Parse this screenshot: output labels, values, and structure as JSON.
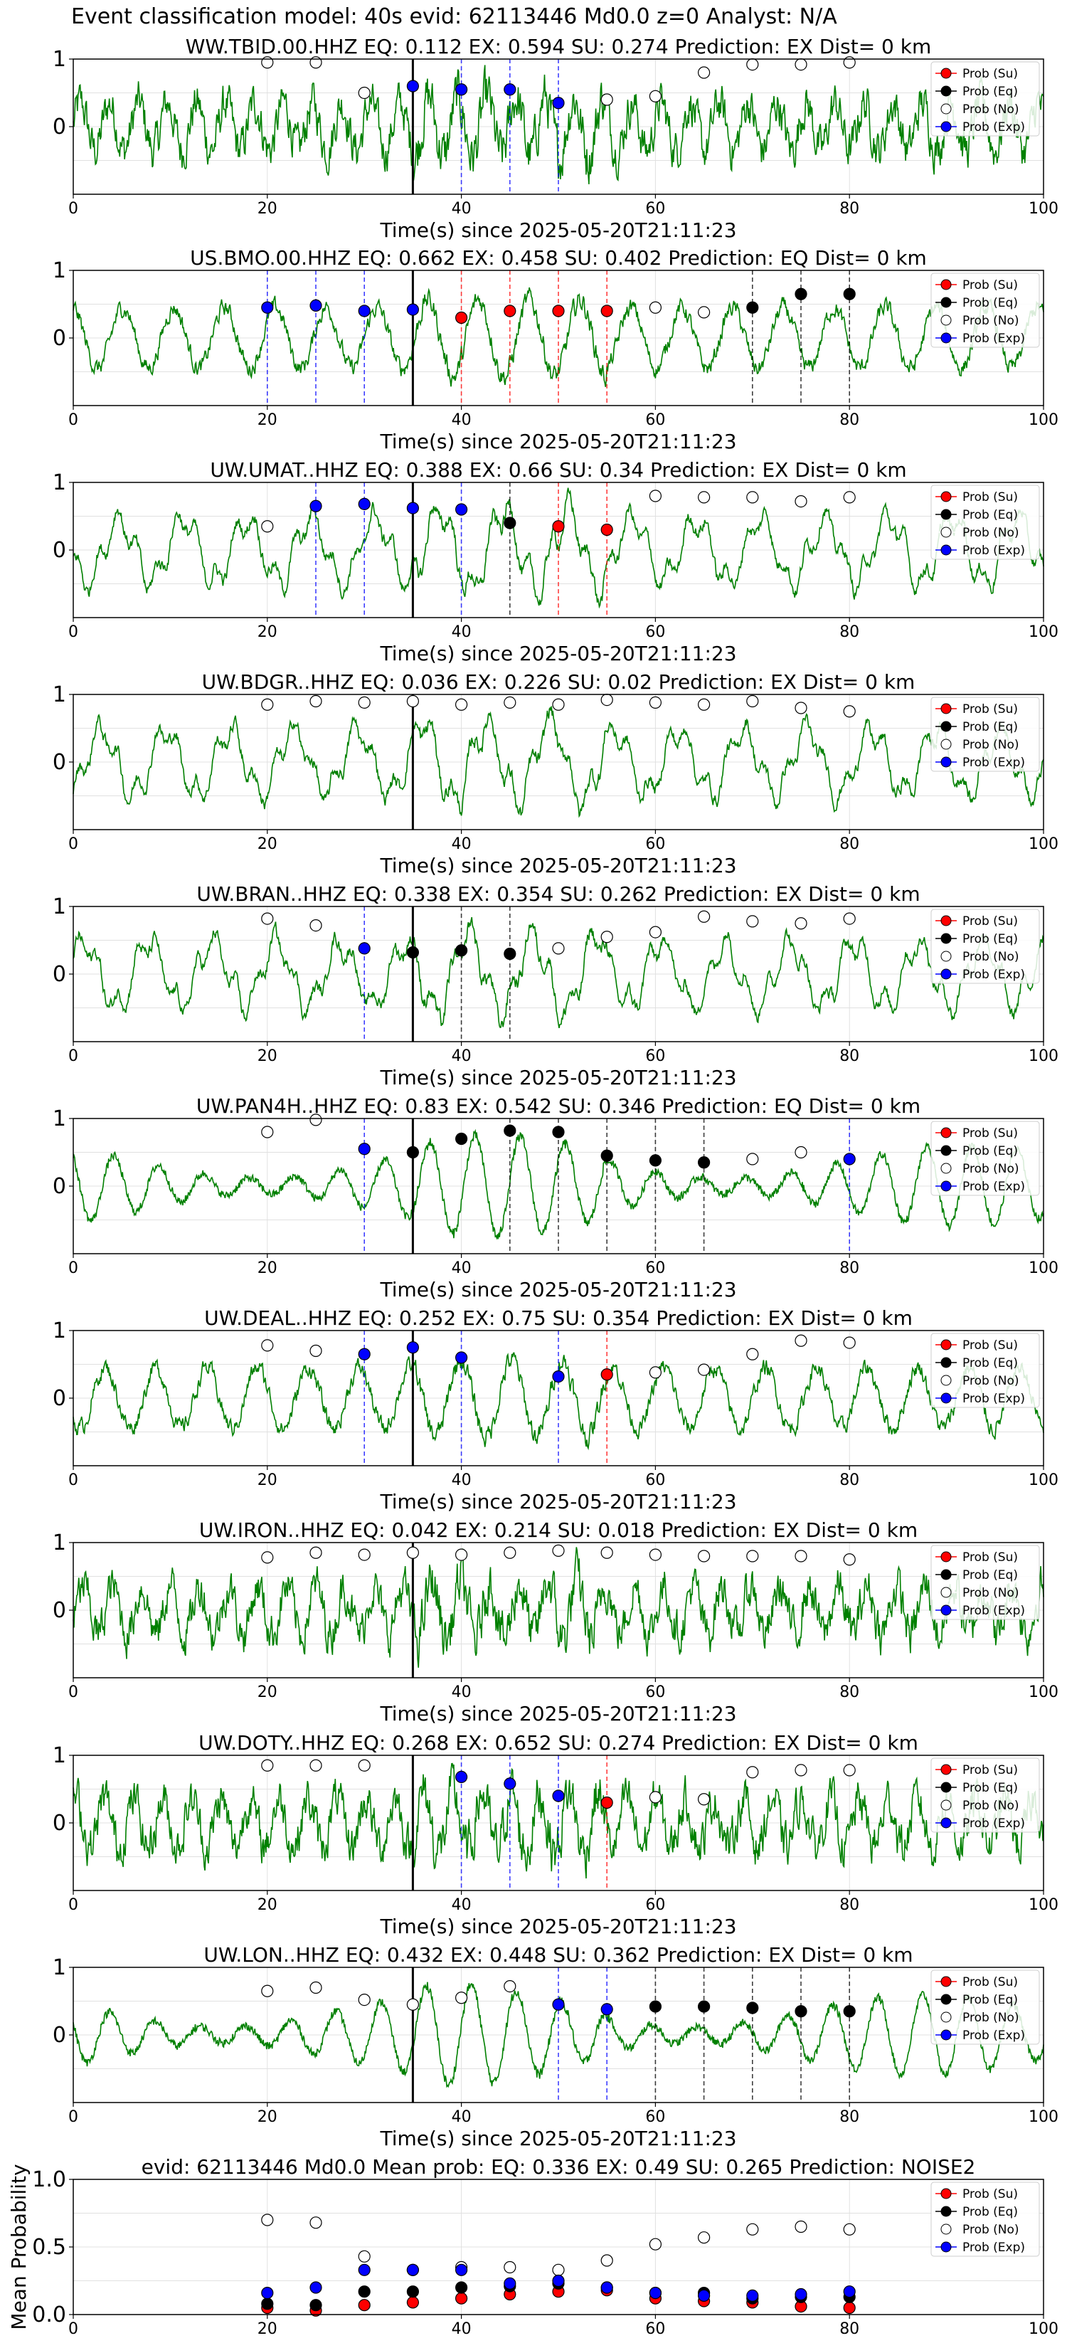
{
  "figure_title": "Event classification model: 40s evid: 62113446 Md0.0 z=0 Analyst: N/A",
  "legend_labels": [
    "Prob (Su)",
    "Prob (Eq)",
    "Prob (No)",
    "Prob (Exp)"
  ],
  "colors": {
    "trace": "#008000",
    "su": "#ff0000",
    "eq": "#000000",
    "no": "#ffffff",
    "exp": "#0000ff",
    "onset_line": "#000000",
    "grid": "#e0e0e0"
  },
  "chart_data": [
    {
      "type": "line",
      "station": "WW.TBID.00.HHZ",
      "title": "WW.TBID.00.HHZ   EQ: 0.112  EX: 0.594  SU: 0.274   Prediction: EX    Dist= 0 km",
      "xlabel": "Time(s) since 2025-05-20T21:11:23",
      "xlim": [
        0,
        100
      ],
      "xticks": [
        0,
        20,
        40,
        60,
        80,
        100
      ],
      "yticks": [
        0,
        1
      ],
      "ylim": [
        -1,
        1
      ],
      "onset": 35,
      "style": "hf",
      "no": [
        [
          20,
          0.95
        ],
        [
          25,
          0.95
        ],
        [
          30,
          0.5
        ],
        [
          55,
          0.4
        ],
        [
          60,
          0.45
        ],
        [
          65,
          0.8
        ],
        [
          70,
          0.92
        ],
        [
          75,
          0.92
        ],
        [
          80,
          0.95
        ]
      ],
      "eq": [],
      "su": [],
      "exp": [
        [
          35,
          0.6
        ],
        [
          40,
          0.55
        ],
        [
          45,
          0.55
        ],
        [
          50,
          0.35
        ]
      ],
      "vlines": [
        [
          40,
          "exp"
        ],
        [
          45,
          "exp"
        ],
        [
          50,
          "exp"
        ]
      ]
    },
    {
      "type": "line",
      "station": "US.BMO.00.HHZ",
      "title": "US.BMO.00.HHZ   EQ: 0.662  EX: 0.458  SU: 0.402   Prediction: EQ    Dist= 0 km",
      "xlabel": "Time(s) since 2025-05-20T21:11:23",
      "xlim": [
        0,
        100
      ],
      "xticks": [
        0,
        20,
        40,
        60,
        80,
        100
      ],
      "yticks": [
        0,
        1
      ],
      "ylim": [
        -1,
        1
      ],
      "onset": 35,
      "style": "mix",
      "no": [
        [
          60,
          0.45
        ],
        [
          65,
          0.38
        ]
      ],
      "eq": [
        [
          70,
          0.45
        ],
        [
          75,
          0.65
        ],
        [
          80,
          0.65
        ]
      ],
      "su": [
        [
          40,
          0.3
        ],
        [
          45,
          0.4
        ],
        [
          50,
          0.4
        ],
        [
          55,
          0.4
        ]
      ],
      "exp": [
        [
          20,
          0.45
        ],
        [
          25,
          0.48
        ],
        [
          30,
          0.4
        ],
        [
          35,
          0.42
        ]
      ],
      "vlines": [
        [
          20,
          "exp"
        ],
        [
          25,
          "exp"
        ],
        [
          30,
          "exp"
        ],
        [
          40,
          "su"
        ],
        [
          45,
          "su"
        ],
        [
          50,
          "su"
        ],
        [
          55,
          "su"
        ],
        [
          70,
          "eq"
        ],
        [
          75,
          "eq"
        ],
        [
          80,
          "eq"
        ]
      ]
    },
    {
      "type": "line",
      "station": "UW.UMAT..HHZ",
      "title": "UW.UMAT..HHZ   EQ: 0.388  EX: 0.66  SU: 0.34   Prediction: EX    Dist= 0 km",
      "xlabel": "Time(s) since 2025-05-20T21:11:23",
      "xlim": [
        0,
        100
      ],
      "xticks": [
        0,
        20,
        40,
        60,
        80,
        100
      ],
      "yticks": [
        0,
        1
      ],
      "ylim": [
        -1,
        1
      ],
      "onset": 35,
      "style": "low",
      "no": [
        [
          20,
          0.35
        ],
        [
          60,
          0.8
        ],
        [
          65,
          0.78
        ],
        [
          70,
          0.78
        ],
        [
          75,
          0.72
        ],
        [
          80,
          0.78
        ]
      ],
      "eq": [
        [
          45,
          0.4
        ]
      ],
      "su": [
        [
          50,
          0.35
        ],
        [
          55,
          0.3
        ]
      ],
      "exp": [
        [
          25,
          0.65
        ],
        [
          30,
          0.68
        ],
        [
          35,
          0.62
        ],
        [
          40,
          0.6
        ]
      ],
      "vlines": [
        [
          25,
          "exp"
        ],
        [
          30,
          "exp"
        ],
        [
          40,
          "exp"
        ],
        [
          45,
          "eq"
        ],
        [
          50,
          "su"
        ],
        [
          55,
          "su"
        ]
      ]
    },
    {
      "type": "line",
      "station": "UW.BDGR..HHZ",
      "title": "UW.BDGR..HHZ   EQ: 0.036  EX: 0.226  SU: 0.02   Prediction: EX    Dist= 0 km",
      "xlabel": "Time(s) since 2025-05-20T21:11:23",
      "xlim": [
        0,
        100
      ],
      "xticks": [
        0,
        20,
        40,
        60,
        80,
        100
      ],
      "yticks": [
        0,
        1
      ],
      "ylim": [
        -1,
        1
      ],
      "onset": 35,
      "style": "low",
      "no": [
        [
          20,
          0.85
        ],
        [
          25,
          0.9
        ],
        [
          30,
          0.88
        ],
        [
          35,
          0.9
        ],
        [
          40,
          0.85
        ],
        [
          45,
          0.88
        ],
        [
          50,
          0.85
        ],
        [
          55,
          0.92
        ],
        [
          60,
          0.88
        ],
        [
          65,
          0.85
        ],
        [
          70,
          0.9
        ],
        [
          75,
          0.8
        ],
        [
          80,
          0.75
        ]
      ],
      "eq": [],
      "su": [],
      "exp": [],
      "vlines": []
    },
    {
      "type": "line",
      "station": "UW.BRAN..HHZ",
      "title": "UW.BRAN..HHZ   EQ: 0.338  EX: 0.354  SU: 0.262   Prediction: EX    Dist= 0 km",
      "xlabel": "Time(s) since 2025-05-20T21:11:23",
      "xlim": [
        0,
        100
      ],
      "xticks": [
        0,
        20,
        40,
        60,
        80,
        100
      ],
      "yticks": [
        0,
        1
      ],
      "ylim": [
        -1,
        1
      ],
      "onset": 35,
      "style": "low",
      "no": [
        [
          20,
          0.82
        ],
        [
          25,
          0.72
        ],
        [
          50,
          0.38
        ],
        [
          55,
          0.55
        ],
        [
          60,
          0.62
        ],
        [
          65,
          0.85
        ],
        [
          70,
          0.78
        ],
        [
          75,
          0.75
        ],
        [
          80,
          0.82
        ]
      ],
      "eq": [
        [
          35,
          0.32
        ],
        [
          40,
          0.35
        ],
        [
          45,
          0.3
        ]
      ],
      "su": [],
      "exp": [
        [
          30,
          0.38
        ]
      ],
      "vlines": [
        [
          30,
          "exp"
        ],
        [
          40,
          "eq"
        ],
        [
          45,
          "eq"
        ]
      ]
    },
    {
      "type": "line",
      "station": "UW.PAN4H..HHZ",
      "title": "UW.PAN4H..HHZ   EQ: 0.83  EX: 0.542  SU: 0.346   Prediction: EQ    Dist= 0 km",
      "xlabel": "Time(s) since 2025-05-20T21:11:23",
      "xlim": [
        0,
        100
      ],
      "xticks": [
        0,
        20,
        40,
        60,
        80,
        100
      ],
      "yticks": [
        0,
        1
      ],
      "ylim": [
        -1,
        1
      ],
      "onset": 35,
      "style": "smooth",
      "no": [
        [
          20,
          0.8
        ],
        [
          25,
          0.98
        ],
        [
          70,
          0.4
        ],
        [
          75,
          0.5
        ]
      ],
      "eq": [
        [
          35,
          0.5
        ],
        [
          40,
          0.7
        ],
        [
          45,
          0.82
        ],
        [
          50,
          0.8
        ],
        [
          55,
          0.45
        ],
        [
          60,
          0.38
        ],
        [
          65,
          0.35
        ]
      ],
      "su": [],
      "exp": [
        [
          30,
          0.55
        ],
        [
          80,
          0.4
        ]
      ],
      "vlines": [
        [
          30,
          "exp"
        ],
        [
          45,
          "eq"
        ],
        [
          50,
          "eq"
        ],
        [
          55,
          "eq"
        ],
        [
          60,
          "eq"
        ],
        [
          65,
          "eq"
        ],
        [
          80,
          "exp"
        ]
      ]
    },
    {
      "type": "line",
      "station": "UW.DEAL..HHZ",
      "title": "UW.DEAL..HHZ   EQ: 0.252  EX: 0.75  SU: 0.354   Prediction: EX    Dist= 0 km",
      "xlabel": "Time(s) since 2025-05-20T21:11:23",
      "xlim": [
        0,
        100
      ],
      "xticks": [
        0,
        20,
        40,
        60,
        80,
        100
      ],
      "yticks": [
        0,
        1
      ],
      "ylim": [
        -1,
        1
      ],
      "onset": 35,
      "style": "mix",
      "no": [
        [
          20,
          0.78
        ],
        [
          25,
          0.7
        ],
        [
          60,
          0.38
        ],
        [
          65,
          0.42
        ],
        [
          70,
          0.65
        ],
        [
          75,
          0.85
        ],
        [
          80,
          0.82
        ]
      ],
      "eq": [],
      "su": [
        [
          55,
          0.35
        ]
      ],
      "exp": [
        [
          30,
          0.65
        ],
        [
          35,
          0.75
        ],
        [
          40,
          0.6
        ],
        [
          50,
          0.32
        ]
      ],
      "vlines": [
        [
          30,
          "exp"
        ],
        [
          40,
          "exp"
        ],
        [
          50,
          "exp"
        ],
        [
          55,
          "su"
        ]
      ]
    },
    {
      "type": "line",
      "station": "UW.IRON..HHZ",
      "title": "UW.IRON..HHZ   EQ: 0.042  EX: 0.214  SU: 0.018   Prediction: EX    Dist= 0 km",
      "xlabel": "Time(s) since 2025-05-20T21:11:23",
      "xlim": [
        0,
        100
      ],
      "xticks": [
        0,
        20,
        40,
        60,
        80,
        100
      ],
      "yticks": [
        0,
        1
      ],
      "ylim": [
        -1,
        1
      ],
      "onset": 35,
      "style": "hf",
      "no": [
        [
          20,
          0.78
        ],
        [
          25,
          0.85
        ],
        [
          30,
          0.82
        ],
        [
          35,
          0.85
        ],
        [
          40,
          0.82
        ],
        [
          45,
          0.85
        ],
        [
          50,
          0.88
        ],
        [
          55,
          0.85
        ],
        [
          60,
          0.82
        ],
        [
          65,
          0.8
        ],
        [
          70,
          0.8
        ],
        [
          75,
          0.8
        ],
        [
          80,
          0.75
        ]
      ],
      "eq": [],
      "su": [],
      "exp": [],
      "vlines": []
    },
    {
      "type": "line",
      "station": "UW.DOTY..HHZ",
      "title": "UW.DOTY..HHZ   EQ: 0.268  EX: 0.652  SU: 0.274   Prediction: EX    Dist= 0 km",
      "xlabel": "Time(s) since 2025-05-20T21:11:23",
      "xlim": [
        0,
        100
      ],
      "xticks": [
        0,
        20,
        40,
        60,
        80,
        100
      ],
      "yticks": [
        0,
        1
      ],
      "ylim": [
        -1,
        1
      ],
      "onset": 35,
      "style": "hf",
      "no": [
        [
          20,
          0.85
        ],
        [
          25,
          0.85
        ],
        [
          30,
          0.85
        ],
        [
          60,
          0.38
        ],
        [
          65,
          0.35
        ],
        [
          70,
          0.75
        ],
        [
          75,
          0.78
        ],
        [
          80,
          0.78
        ]
      ],
      "eq": [],
      "su": [
        [
          55,
          0.3
        ]
      ],
      "exp": [
        [
          40,
          0.68
        ],
        [
          45,
          0.58
        ],
        [
          50,
          0.4
        ]
      ],
      "vlines": [
        [
          40,
          "exp"
        ],
        [
          45,
          "exp"
        ],
        [
          50,
          "exp"
        ],
        [
          55,
          "su"
        ]
      ]
    },
    {
      "type": "line",
      "station": "UW.LON..HHZ",
      "title": "UW.LON..HHZ   EQ: 0.432  EX: 0.448  SU: 0.362   Prediction: EX    Dist= 0 km",
      "xlabel": "Time(s) since 2025-05-20T21:11:23",
      "xlim": [
        0,
        100
      ],
      "xticks": [
        0,
        20,
        40,
        60,
        80,
        100
      ],
      "yticks": [
        0,
        1
      ],
      "ylim": [
        -1,
        1
      ],
      "onset": 35,
      "style": "smooth",
      "no": [
        [
          20,
          0.65
        ],
        [
          25,
          0.7
        ],
        [
          30,
          0.52
        ],
        [
          35,
          0.45
        ],
        [
          40,
          0.55
        ],
        [
          45,
          0.72
        ]
      ],
      "eq": [
        [
          60,
          0.42
        ],
        [
          65,
          0.42
        ],
        [
          70,
          0.4
        ],
        [
          75,
          0.35
        ],
        [
          80,
          0.35
        ]
      ],
      "su": [],
      "exp": [
        [
          50,
          0.45
        ],
        [
          55,
          0.38
        ]
      ],
      "vlines": [
        [
          50,
          "exp"
        ],
        [
          55,
          "exp"
        ],
        [
          60,
          "eq"
        ],
        [
          65,
          "eq"
        ],
        [
          70,
          "eq"
        ],
        [
          75,
          "eq"
        ],
        [
          80,
          "eq"
        ]
      ]
    },
    {
      "type": "scatter",
      "title": "evid: 62113446  Md0.0   Mean prob:   EQ: 0.336  EX: 0.49  SU: 0.265   Prediction: NOISE2",
      "ylabel": "Mean Probability",
      "xlim": [
        0,
        100
      ],
      "ylim": [
        0,
        1
      ],
      "xticks": [
        0,
        20,
        40,
        60,
        80,
        100
      ],
      "yticks": [
        0.0,
        0.5,
        1.0
      ],
      "no": [
        [
          20,
          0.7
        ],
        [
          25,
          0.68
        ],
        [
          30,
          0.43
        ],
        [
          35,
          0.33
        ],
        [
          40,
          0.35
        ],
        [
          45,
          0.35
        ],
        [
          50,
          0.33
        ],
        [
          55,
          0.4
        ],
        [
          60,
          0.52
        ],
        [
          65,
          0.57
        ],
        [
          70,
          0.63
        ],
        [
          75,
          0.65
        ],
        [
          80,
          0.63
        ]
      ],
      "eq": [
        [
          20,
          0.08
        ],
        [
          25,
          0.07
        ],
        [
          30,
          0.17
        ],
        [
          35,
          0.17
        ],
        [
          40,
          0.2
        ],
        [
          45,
          0.21
        ],
        [
          50,
          0.23
        ],
        [
          55,
          0.2
        ],
        [
          60,
          0.16
        ],
        [
          65,
          0.16
        ],
        [
          70,
          0.12
        ],
        [
          75,
          0.13
        ],
        [
          80,
          0.13
        ]
      ],
      "su": [
        [
          20,
          0.05
        ],
        [
          25,
          0.03
        ],
        [
          30,
          0.07
        ],
        [
          35,
          0.09
        ],
        [
          40,
          0.12
        ],
        [
          45,
          0.15
        ],
        [
          50,
          0.17
        ],
        [
          55,
          0.18
        ],
        [
          60,
          0.12
        ],
        [
          65,
          0.1
        ],
        [
          70,
          0.09
        ],
        [
          75,
          0.06
        ],
        [
          80,
          0.05
        ]
      ],
      "exp": [
        [
          20,
          0.16
        ],
        [
          25,
          0.2
        ],
        [
          30,
          0.33
        ],
        [
          35,
          0.33
        ],
        [
          40,
          0.33
        ],
        [
          45,
          0.23
        ],
        [
          50,
          0.25
        ],
        [
          55,
          0.2
        ],
        [
          60,
          0.16
        ],
        [
          65,
          0.14
        ],
        [
          70,
          0.14
        ],
        [
          75,
          0.15
        ],
        [
          80,
          0.17
        ]
      ]
    }
  ]
}
